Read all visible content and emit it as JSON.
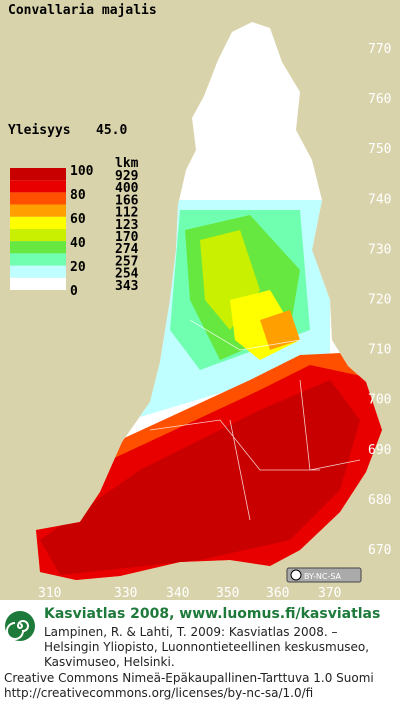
{
  "title": "Convallaria majalis",
  "index": {
    "label": "Yleisyys",
    "value": "45.0"
  },
  "legend": {
    "scale_labels": [
      "100",
      "80",
      "60",
      "40",
      "20",
      "0"
    ],
    "count_header": "lkm",
    "counts": [
      929,
      400,
      166,
      112,
      123,
      170,
      274,
      257,
      254,
      343
    ],
    "colors": [
      "#c80000",
      "#e80000",
      "#ff5000",
      "#ffa000",
      "#ffff00",
      "#c8f000",
      "#66e840",
      "#70ffb0",
      "#c0ffff",
      "#ffffff"
    ]
  },
  "y_axis_labels": [
    "770",
    "760",
    "750",
    "740",
    "730",
    "720",
    "710",
    "700",
    "690",
    "680",
    "670"
  ],
  "x_axis_labels": [
    "310",
    "330",
    "340",
    "350",
    "360",
    "370"
  ],
  "license_badge": "BY-NC-SA",
  "footer": {
    "heading": "Kasviatlas 2008, www.luomus.fi/kasviatlas",
    "citation": [
      "Lampinen, R. & Lahti, T. 2009: Kasviatlas 2008. –",
      "Helsingin Yliopisto, Luonnontieteellinen keskusmuseo,",
      "Kasvimuseo, Helsinki."
    ],
    "license": [
      "Creative Commons Nimeä-Epäkaupallinen-Tarttuva 1.0 Suomi",
      "http://creativecommons.org/licenses/by-nc-sa/1.0/fi"
    ]
  }
}
